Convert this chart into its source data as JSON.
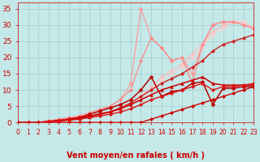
{
  "title": "",
  "xlabel": "Vent moyen/en rafales ( km/h )",
  "ylabel": "",
  "xlim": [
    0,
    23
  ],
  "ylim": [
    0,
    37
  ],
  "yticks": [
    0,
    5,
    10,
    15,
    20,
    25,
    30,
    35
  ],
  "xticks": [
    0,
    1,
    2,
    3,
    4,
    5,
    6,
    7,
    8,
    9,
    10,
    11,
    12,
    13,
    14,
    15,
    16,
    17,
    18,
    19,
    20,
    21,
    22,
    23
  ],
  "bg_color": "#c5e8e8",
  "grid_color": "#a8d0d0",
  "lines": [
    {
      "x": [
        0,
        1,
        2,
        3,
        4,
        5,
        6,
        7,
        8,
        9,
        10,
        11,
        12,
        13,
        14,
        15,
        16,
        17,
        18,
        19,
        20,
        21,
        22,
        23
      ],
      "y": [
        0,
        0,
        0,
        0.2,
        0.5,
        0.8,
        1.2,
        1.8,
        2.5,
        3.0,
        4.5,
        6,
        8,
        11,
        14,
        16,
        18,
        21,
        24,
        28,
        30,
        31,
        31,
        29
      ],
      "color": "#ffbbbb",
      "lw": 0.9,
      "marker": "D",
      "ms": 2.2
    },
    {
      "x": [
        0,
        1,
        2,
        3,
        4,
        5,
        6,
        7,
        8,
        9,
        10,
        11,
        12,
        13,
        14,
        15,
        16,
        17,
        18,
        19,
        20,
        21,
        22,
        23
      ],
      "y": [
        0,
        0,
        0,
        0.2,
        0.5,
        0.8,
        1.2,
        1.8,
        2.5,
        3.0,
        4.0,
        5.5,
        7.5,
        10,
        13,
        15,
        17,
        20,
        23,
        27,
        29,
        31,
        31,
        29
      ],
      "color": "#ffcccc",
      "lw": 0.9,
      "marker": "D",
      "ms": 2.2
    },
    {
      "x": [
        0,
        2,
        3,
        4,
        5,
        6,
        7,
        8,
        9,
        10,
        11,
        12,
        13,
        14,
        15,
        16,
        17,
        18,
        19,
        20,
        21,
        22,
        23
      ],
      "y": [
        0,
        0,
        0.5,
        0.8,
        1.2,
        1.8,
        2.5,
        3.5,
        5,
        7,
        12,
        35,
        26,
        23,
        19,
        20,
        15,
        24,
        30,
        31,
        31,
        30,
        29
      ],
      "color": "#ff9999",
      "lw": 0.9,
      "marker": "D",
      "ms": 2.2
    },
    {
      "x": [
        0,
        1,
        2,
        3,
        4,
        5,
        6,
        7,
        8,
        9,
        10,
        11,
        12,
        13,
        14,
        15,
        16,
        17,
        18,
        19,
        20,
        21,
        22,
        23
      ],
      "y": [
        0,
        0,
        0,
        0.5,
        1.0,
        1.5,
        2,
        3,
        4,
        5,
        7,
        10,
        19,
        26,
        23,
        19,
        20,
        12,
        24,
        30,
        31,
        31,
        30,
        29
      ],
      "color": "#ff8888",
      "lw": 0.9,
      "marker": "D",
      "ms": 2.2
    },
    {
      "x": [
        0,
        1,
        2,
        3,
        4,
        5,
        6,
        7,
        8,
        9,
        10,
        11,
        12,
        13,
        14,
        15,
        16,
        17,
        18,
        19,
        20,
        21,
        22,
        23
      ],
      "y": [
        0,
        0,
        0,
        0.3,
        0.6,
        1.0,
        1.5,
        2.0,
        2.7,
        3.3,
        4.5,
        6,
        8,
        10,
        12,
        13.5,
        15,
        17,
        19,
        22,
        24,
        25,
        26,
        27
      ],
      "color": "#cc2222",
      "lw": 1.0,
      "marker": "D",
      "ms": 2.2
    },
    {
      "x": [
        0,
        1,
        2,
        3,
        4,
        5,
        6,
        7,
        8,
        9,
        10,
        11,
        12,
        13,
        14,
        15,
        16,
        17,
        18,
        19,
        20,
        21,
        22,
        23
      ],
      "y": [
        0,
        0,
        0,
        0.3,
        0.6,
        1.0,
        1.5,
        2.5,
        3.5,
        4.5,
        5.5,
        7,
        10,
        14,
        8,
        9.5,
        10,
        12,
        12.5,
        5.5,
        10.5,
        10.5,
        11,
        11
      ],
      "color": "#bb0000",
      "lw": 1.1,
      "marker": "D",
      "ms": 2.5
    },
    {
      "x": [
        0,
        1,
        2,
        3,
        4,
        5,
        6,
        7,
        8,
        9,
        10,
        11,
        12,
        13,
        14,
        15,
        16,
        17,
        18,
        19,
        20,
        21,
        22,
        23
      ],
      "y": [
        0,
        0,
        0,
        0.2,
        0.5,
        0.8,
        1.2,
        1.8,
        2.5,
        3.2,
        4.2,
        5.5,
        7,
        8.5,
        10,
        11,
        12,
        13,
        14,
        12,
        11.5,
        11.5,
        11.5,
        11.5
      ],
      "color": "#cc0000",
      "lw": 1.1,
      "marker": "^",
      "ms": 2.8
    },
    {
      "x": [
        0,
        1,
        2,
        3,
        4,
        5,
        6,
        7,
        8,
        9,
        10,
        11,
        12,
        13,
        14,
        15,
        16,
        17,
        18,
        19,
        20,
        21,
        22,
        23
      ],
      "y": [
        0,
        0,
        0,
        0,
        0,
        0,
        0,
        0,
        0,
        0,
        0,
        0,
        0,
        1,
        2,
        3,
        4,
        5,
        6,
        7,
        8,
        9,
        10,
        11
      ],
      "color": "#cc0000",
      "lw": 1.0,
      "marker": "D",
      "ms": 2.2
    },
    {
      "x": [
        0,
        1,
        2,
        3,
        4,
        5,
        6,
        7,
        8,
        9,
        10,
        11,
        12,
        13,
        14,
        15,
        16,
        17,
        18,
        19,
        20,
        21,
        22,
        23
      ],
      "y": [
        0,
        0,
        0,
        0.2,
        0.4,
        0.7,
        1.0,
        1.5,
        2.0,
        2.5,
        3.2,
        4.2,
        5.5,
        7,
        8,
        9,
        10,
        11,
        12,
        10,
        11,
        11,
        11.5,
        12
      ],
      "color": "#dd1111",
      "lw": 1.0,
      "marker": "D",
      "ms": 2.2
    }
  ],
  "arrow_color": "#cc0000",
  "tick_color": "#cc0000",
  "xlabel_color": "#cc0000",
  "xlabel_fontsize": 7,
  "tick_fontsize_x": 5.5,
  "tick_fontsize_y": 6.5
}
